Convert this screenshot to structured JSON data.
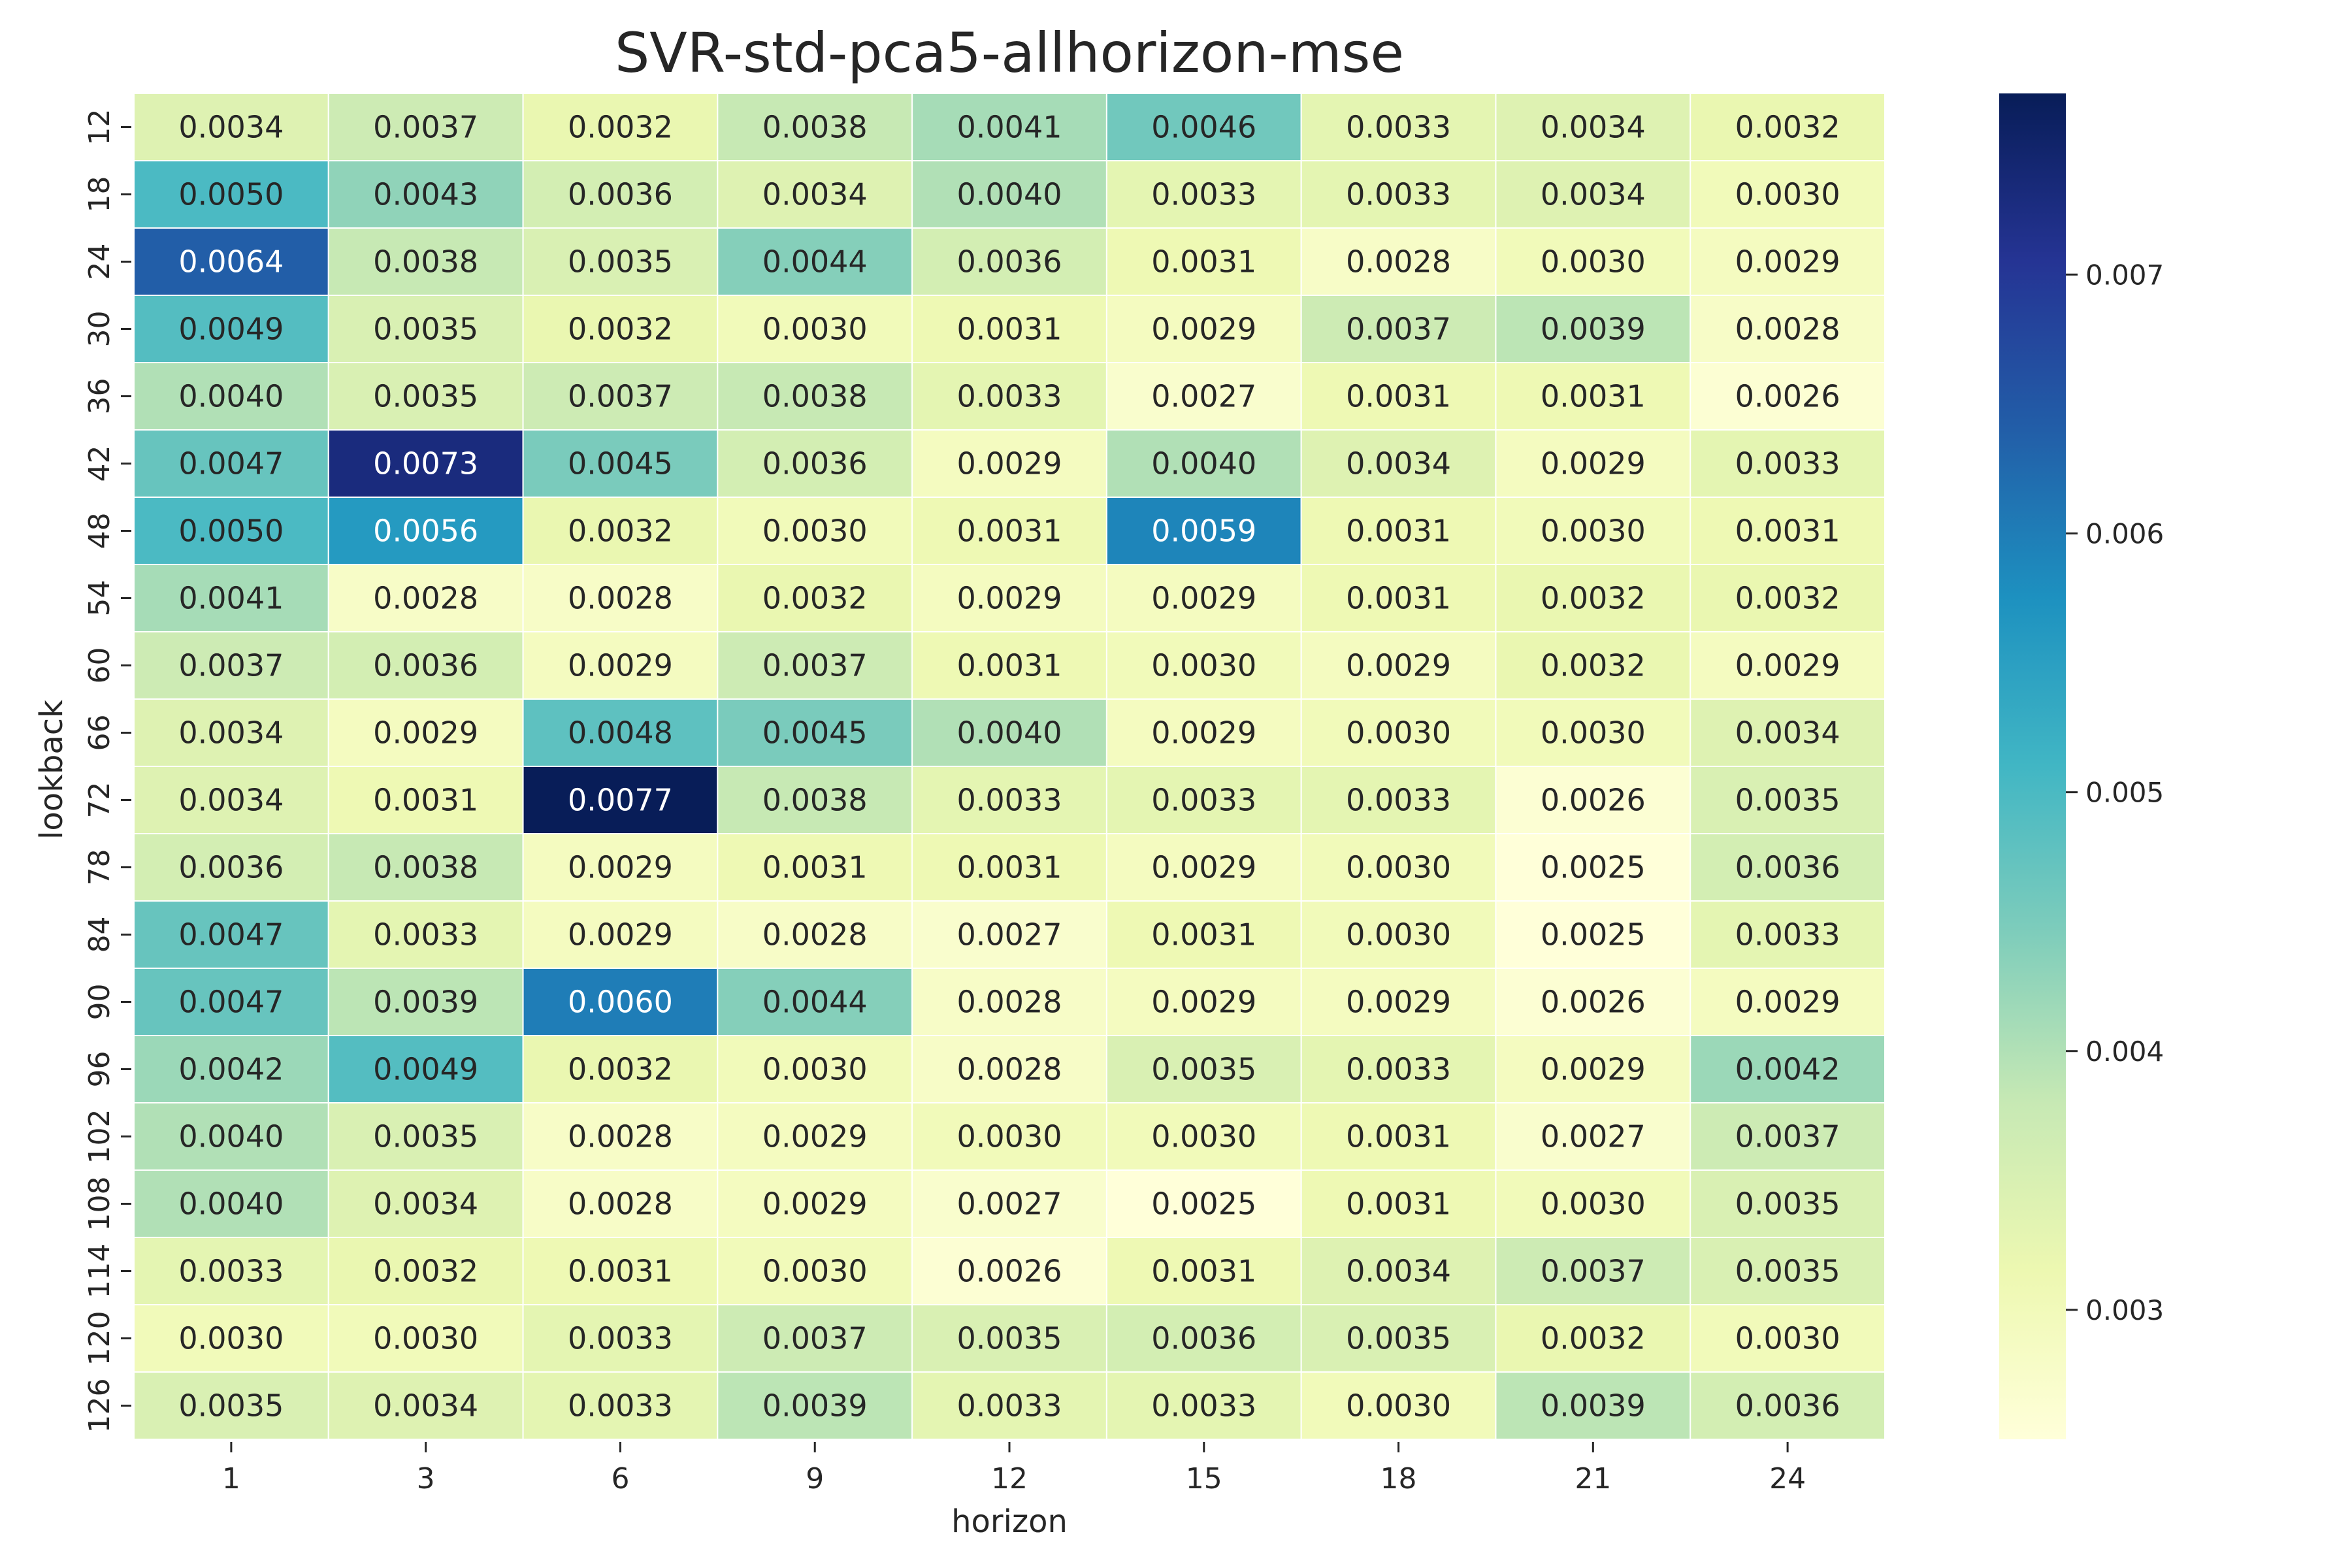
{
  "chart_data": {
    "type": "heatmap",
    "title": "SVR-std-pca5-allhorizon-mse",
    "xlabel": "horizon",
    "ylabel": "lookback",
    "x_categories": [
      "1",
      "3",
      "6",
      "9",
      "12",
      "15",
      "18",
      "21",
      "24"
    ],
    "y_categories": [
      "12",
      "18",
      "24",
      "30",
      "36",
      "42",
      "48",
      "54",
      "60",
      "66",
      "72",
      "78",
      "84",
      "90",
      "96",
      "102",
      "108",
      "114",
      "120",
      "126"
    ],
    "values": [
      [
        0.0034,
        0.0037,
        0.0032,
        0.0038,
        0.0041,
        0.0046,
        0.0033,
        0.0034,
        0.0032
      ],
      [
        0.005,
        0.0043,
        0.0036,
        0.0034,
        0.004,
        0.0033,
        0.0033,
        0.0034,
        0.003
      ],
      [
        0.0064,
        0.0038,
        0.0035,
        0.0044,
        0.0036,
        0.0031,
        0.0028,
        0.003,
        0.0029
      ],
      [
        0.0049,
        0.0035,
        0.0032,
        0.003,
        0.0031,
        0.0029,
        0.0037,
        0.0039,
        0.0028
      ],
      [
        0.004,
        0.0035,
        0.0037,
        0.0038,
        0.0033,
        0.0027,
        0.0031,
        0.0031,
        0.0026
      ],
      [
        0.0047,
        0.0073,
        0.0045,
        0.0036,
        0.0029,
        0.004,
        0.0034,
        0.0029,
        0.0033
      ],
      [
        0.005,
        0.0056,
        0.0032,
        0.003,
        0.0031,
        0.0059,
        0.0031,
        0.003,
        0.0031
      ],
      [
        0.0041,
        0.0028,
        0.0028,
        0.0032,
        0.0029,
        0.0029,
        0.0031,
        0.0032,
        0.0032
      ],
      [
        0.0037,
        0.0036,
        0.0029,
        0.0037,
        0.0031,
        0.003,
        0.0029,
        0.0032,
        0.0029
      ],
      [
        0.0034,
        0.0029,
        0.0048,
        0.0045,
        0.004,
        0.0029,
        0.003,
        0.003,
        0.0034
      ],
      [
        0.0034,
        0.0031,
        0.0077,
        0.0038,
        0.0033,
        0.0033,
        0.0033,
        0.0026,
        0.0035
      ],
      [
        0.0036,
        0.0038,
        0.0029,
        0.0031,
        0.0031,
        0.0029,
        0.003,
        0.0025,
        0.0036
      ],
      [
        0.0047,
        0.0033,
        0.0029,
        0.0028,
        0.0027,
        0.0031,
        0.003,
        0.0025,
        0.0033
      ],
      [
        0.0047,
        0.0039,
        0.006,
        0.0044,
        0.0028,
        0.0029,
        0.0029,
        0.0026,
        0.0029
      ],
      [
        0.0042,
        0.0049,
        0.0032,
        0.003,
        0.0028,
        0.0035,
        0.0033,
        0.0029,
        0.0042
      ],
      [
        0.004,
        0.0035,
        0.0028,
        0.0029,
        0.003,
        0.003,
        0.0031,
        0.0027,
        0.0037
      ],
      [
        0.004,
        0.0034,
        0.0028,
        0.0029,
        0.0027,
        0.0025,
        0.0031,
        0.003,
        0.0035
      ],
      [
        0.0033,
        0.0032,
        0.0031,
        0.003,
        0.0026,
        0.0031,
        0.0034,
        0.0037,
        0.0035
      ],
      [
        0.003,
        0.003,
        0.0033,
        0.0037,
        0.0035,
        0.0036,
        0.0035,
        0.0032,
        0.003
      ],
      [
        0.0035,
        0.0034,
        0.0033,
        0.0039,
        0.0033,
        0.0033,
        0.003,
        0.0039,
        0.0036
      ]
    ],
    "value_format_decimals": 4,
    "colormap": "YlGnBu",
    "colorbar": {
      "range": [
        0.0025,
        0.0077
      ],
      "ticks": [
        0.003,
        0.004,
        0.005,
        0.006,
        0.007
      ],
      "tick_labels": [
        "0.003",
        "0.004",
        "0.005",
        "0.006",
        "0.007"
      ]
    },
    "grid": false
  }
}
